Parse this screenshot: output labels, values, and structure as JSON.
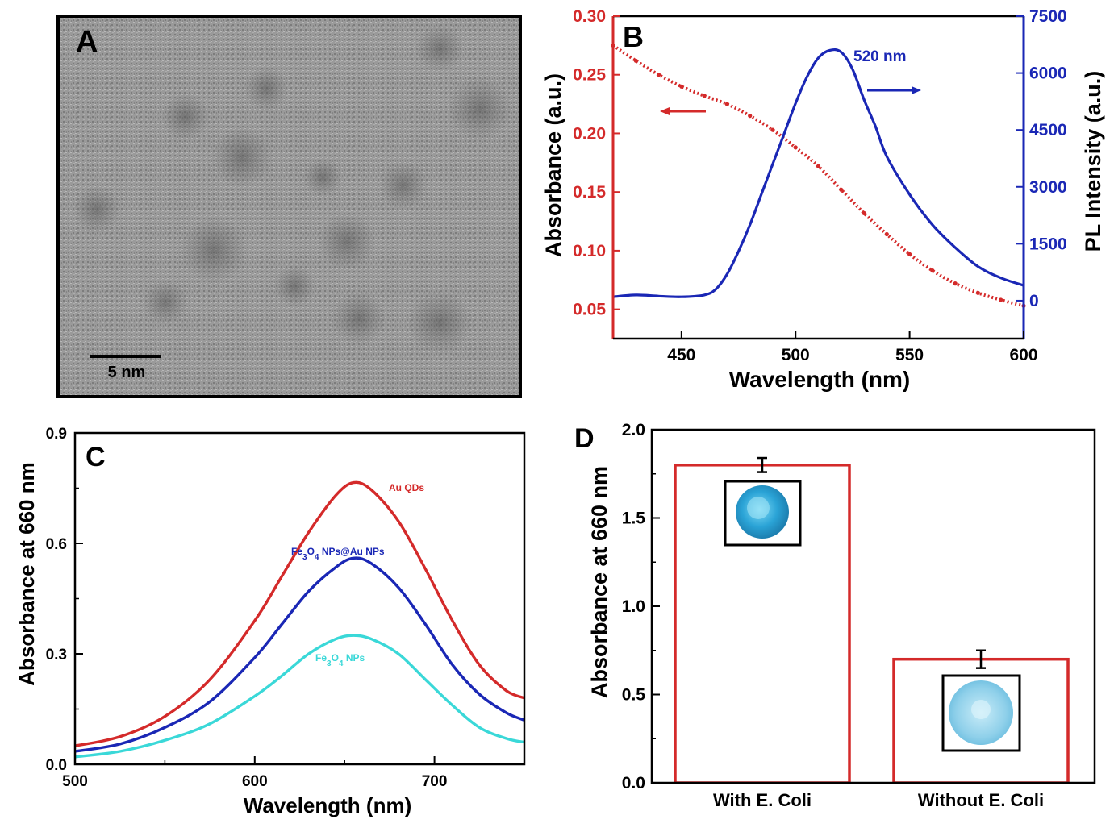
{
  "chart_data": [
    {
      "panel": "A",
      "type": "image",
      "scale_bar_label": "5 nm"
    },
    {
      "panel": "B",
      "type": "line",
      "xlabel": "Wavelength (nm)",
      "ylabel": "Absorbance (a.u.)",
      "y2label": "PL Intensity (a.u.)",
      "xlim": [
        420,
        600
      ],
      "ylim": [
        0.025,
        0.3
      ],
      "y2lim": [
        -1000,
        7500
      ],
      "x_ticks": [
        "450",
        "500",
        "550",
        "600"
      ],
      "y_ticks": [
        "0.30",
        "0.25",
        "0.20",
        "0.15",
        "0.10",
        "0.05"
      ],
      "y2_ticks": [
        "7500",
        "6000",
        "4500",
        "3000",
        "1500",
        "0"
      ],
      "annotation": "520 nm",
      "colors": {
        "absorbance": "#d42a2a",
        "pl": "#1a27b5"
      },
      "series": [
        {
          "axis": "left",
          "style": "dotted",
          "x": [
            420,
            430,
            440,
            450,
            460,
            470,
            480,
            490,
            500,
            510,
            520,
            530,
            540,
            550,
            560,
            570,
            580,
            590,
            600
          ],
          "values": [
            0.275,
            0.262,
            0.25,
            0.24,
            0.232,
            0.225,
            0.215,
            0.203,
            0.188,
            0.172,
            0.152,
            0.132,
            0.114,
            0.097,
            0.083,
            0.072,
            0.064,
            0.058,
            0.053
          ]
        },
        {
          "axis": "right",
          "style": "solid",
          "x": [
            420,
            430,
            440,
            450,
            460,
            465,
            470,
            475,
            480,
            485,
            490,
            495,
            500,
            505,
            510,
            515,
            520,
            525,
            530,
            535,
            540,
            550,
            560,
            570,
            580,
            590,
            600
          ],
          "values": [
            100,
            150,
            120,
            100,
            150,
            300,
            700,
            1300,
            2000,
            2800,
            3600,
            4400,
            5200,
            5900,
            6400,
            6600,
            6550,
            6100,
            5300,
            4600,
            3800,
            2800,
            2000,
            1400,
            900,
            600,
            400
          ]
        }
      ]
    },
    {
      "panel": "C",
      "type": "line",
      "xlabel": "Wavelength (nm)",
      "ylabel": "Absorbance at 660 nm",
      "xlim": [
        500,
        750
      ],
      "ylim": [
        0,
        0.9
      ],
      "x_ticks": [
        "500",
        "600",
        "700"
      ],
      "y_ticks": [
        "0.9",
        "0.6",
        "0.3",
        "0.0"
      ],
      "colors": {
        "Au QDs": "#d42a2a",
        "Fe3O4 NPs@Au NPs": "#1a27b5",
        "Fe3O4 NPs": "#3ad8d8"
      },
      "series": [
        {
          "name": "Au QDs",
          "label_parts": [
            "Au QDs"
          ],
          "x": [
            500,
            525,
            550,
            575,
            600,
            615,
            630,
            645,
            655,
            665,
            680,
            695,
            710,
            725,
            740,
            750
          ],
          "values": [
            0.05,
            0.075,
            0.13,
            0.23,
            0.39,
            0.51,
            0.63,
            0.73,
            0.765,
            0.745,
            0.66,
            0.53,
            0.39,
            0.27,
            0.2,
            0.18
          ]
        },
        {
          "name": "Fe3O4 NPs@Au NPs",
          "label_parts": [
            "Fe",
            "3",
            "O",
            "4",
            " NPs@Au NPs"
          ],
          "x": [
            500,
            525,
            550,
            575,
            600,
            615,
            630,
            645,
            655,
            665,
            680,
            695,
            710,
            725,
            740,
            750
          ],
          "values": [
            0.035,
            0.055,
            0.1,
            0.17,
            0.29,
            0.38,
            0.47,
            0.535,
            0.56,
            0.545,
            0.48,
            0.38,
            0.27,
            0.19,
            0.14,
            0.12
          ]
        },
        {
          "name": "Fe3O4 NPs",
          "label_parts": [
            "Fe",
            "3",
            "O",
            "4",
            " NPs"
          ],
          "x": [
            500,
            525,
            550,
            575,
            600,
            615,
            630,
            645,
            655,
            665,
            680,
            695,
            710,
            725,
            740,
            750
          ],
          "values": [
            0.02,
            0.035,
            0.065,
            0.11,
            0.185,
            0.24,
            0.3,
            0.34,
            0.35,
            0.34,
            0.3,
            0.23,
            0.16,
            0.1,
            0.07,
            0.06
          ]
        }
      ]
    },
    {
      "panel": "D",
      "type": "bar",
      "ylabel": "Absorbance at 660 nm",
      "ylim": [
        0,
        2.0
      ],
      "y_ticks": [
        "2.0",
        "1.5",
        "1.0",
        "0.5",
        "0.0"
      ],
      "categories": [
        "With E. Coli",
        "Without E. Coli"
      ],
      "values": [
        1.8,
        0.7
      ],
      "errors": [
        0.04,
        0.05
      ],
      "colors": {
        "bar_outline": "#d42a2a",
        "well_dark": "#2aa3d6",
        "well_light": "#8fd0ea"
      }
    }
  ]
}
